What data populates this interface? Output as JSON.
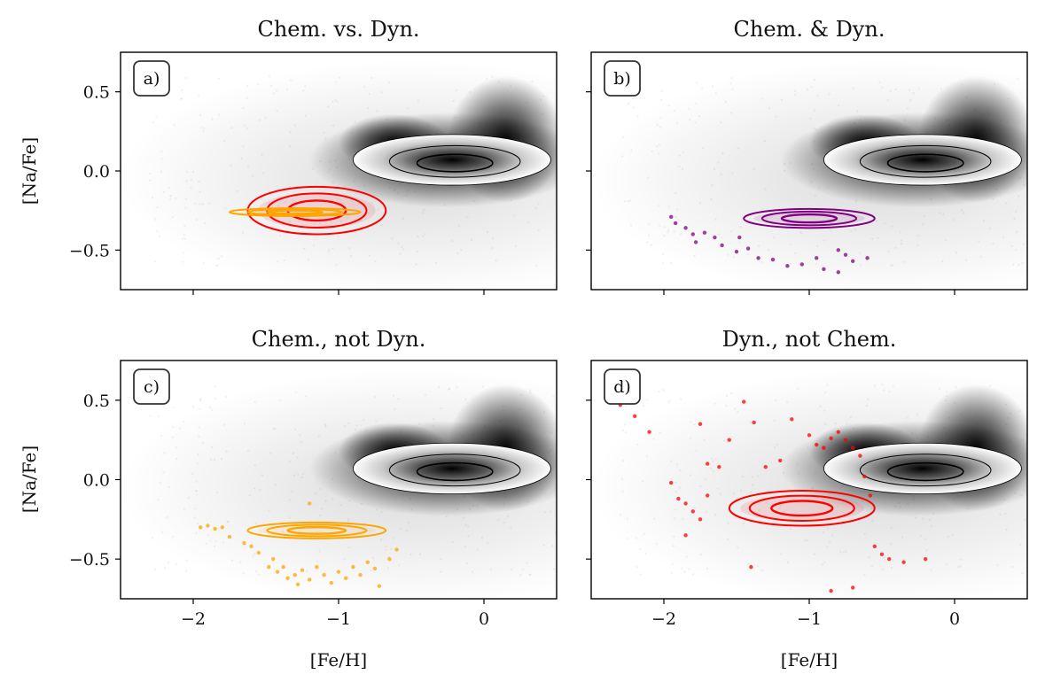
{
  "chart_data": [
    {
      "panel": "a)",
      "type": "scatter",
      "title": "Chem. vs. Dyn.",
      "xlabel": "",
      "ylabel": "[Na/Fe]",
      "xlim": [
        -2.5,
        0.5
      ],
      "ylim": [
        -0.75,
        0.75
      ],
      "xticks": [
        -2,
        -1,
        0
      ],
      "yticks": [
        0.5,
        0.0,
        -0.5
      ],
      "xtick_labels": [
        "",
        "",
        ""
      ],
      "ytick_labels": [
        "0.5",
        "0.0",
        "−0.5"
      ],
      "background_density": "grey field-star density with black contours, peak near [Fe/H]=-0.2, [Na/Fe]=0.05",
      "series": [
        {
          "color": "#ff0000",
          "style": "contour",
          "center": [
            -1.15,
            -0.25
          ],
          "spread": [
            0.95,
            0.3
          ]
        },
        {
          "color": "#ffa500",
          "style": "contour",
          "center": [
            -1.3,
            -0.26
          ],
          "spread": [
            0.9,
            0.05
          ]
        }
      ],
      "points": []
    },
    {
      "panel": "b)",
      "type": "scatter",
      "title": "Chem. & Dyn.",
      "xlabel": "",
      "ylabel": "",
      "xlim": [
        -2.5,
        0.5
      ],
      "ylim": [
        -0.75,
        0.75
      ],
      "xticks": [
        -2,
        -1,
        0
      ],
      "yticks": [
        0.5,
        0.0,
        -0.5
      ],
      "xtick_labels": [
        "",
        "",
        ""
      ],
      "ytick_labels": [
        "",
        "",
        ""
      ],
      "series": [
        {
          "color": "#800080",
          "style": "contour",
          "center": [
            -1.0,
            -0.3
          ],
          "spread": [
            0.9,
            0.12
          ]
        }
      ],
      "points": [
        {
          "color": "#800080",
          "xy": [
            [
              -1.95,
              -0.29
            ],
            [
              -1.92,
              -0.33
            ],
            [
              -1.85,
              -0.36
            ],
            [
              -1.8,
              -0.4
            ],
            [
              -1.72,
              -0.39
            ],
            [
              -1.65,
              -0.42
            ],
            [
              -1.78,
              -0.45
            ],
            [
              -1.6,
              -0.47
            ],
            [
              -1.5,
              -0.51
            ],
            [
              -1.42,
              -0.49
            ],
            [
              -1.35,
              -0.55
            ],
            [
              -1.25,
              -0.56
            ],
            [
              -1.15,
              -0.6
            ],
            [
              -1.05,
              -0.59
            ],
            [
              -0.95,
              -0.55
            ],
            [
              -0.9,
              -0.62
            ],
            [
              -0.8,
              -0.64
            ],
            [
              -0.75,
              -0.53
            ],
            [
              -0.7,
              -0.57
            ],
            [
              -0.6,
              -0.55
            ],
            [
              -0.8,
              -0.5
            ],
            [
              -1.48,
              -0.42
            ]
          ]
        }
      ]
    },
    {
      "panel": "c)",
      "type": "scatter",
      "title": "Chem., not Dyn.",
      "xlabel": "[Fe/H]",
      "ylabel": "[Na/Fe]",
      "xlim": [
        -2.5,
        0.5
      ],
      "ylim": [
        -0.75,
        0.75
      ],
      "xticks": [
        -2,
        -1,
        0
      ],
      "yticks": [
        0.5,
        0.0,
        -0.5
      ],
      "xtick_labels": [
        "−2",
        "−1",
        "0"
      ],
      "ytick_labels": [
        "0.5",
        "0.0",
        "−0.5"
      ],
      "series": [
        {
          "color": "#ffa500",
          "style": "contour",
          "center": [
            -1.15,
            -0.32
          ],
          "spread": [
            0.95,
            0.1
          ]
        }
      ],
      "points": [
        {
          "color": "#ffa500",
          "xy": [
            [
              -1.95,
              -0.3
            ],
            [
              -1.9,
              -0.29
            ],
            [
              -1.85,
              -0.31
            ],
            [
              -1.8,
              -0.3
            ],
            [
              -1.75,
              -0.36
            ],
            [
              -1.65,
              -0.4
            ],
            [
              -1.55,
              -0.46
            ],
            [
              -1.45,
              -0.5
            ],
            [
              -1.42,
              -0.58
            ],
            [
              -1.38,
              -0.55
            ],
            [
              -1.35,
              -0.62
            ],
            [
              -1.3,
              -0.6
            ],
            [
              -1.28,
              -0.66
            ],
            [
              -1.25,
              -0.57
            ],
            [
              -1.2,
              -0.63
            ],
            [
              -1.15,
              -0.55
            ],
            [
              -1.1,
              -0.6
            ],
            [
              -1.05,
              -0.65
            ],
            [
              -1.0,
              -0.58
            ],
            [
              -0.95,
              -0.62
            ],
            [
              -0.9,
              -0.55
            ],
            [
              -0.85,
              -0.6
            ],
            [
              -0.8,
              -0.52
            ],
            [
              -0.75,
              -0.56
            ],
            [
              -0.72,
              -0.67
            ],
            [
              -0.65,
              -0.5
            ],
            [
              -0.6,
              -0.44
            ],
            [
              -1.2,
              -0.15
            ],
            [
              -1.48,
              -0.55
            ],
            [
              -1.6,
              -0.42
            ]
          ]
        }
      ]
    },
    {
      "panel": "d)",
      "type": "scatter",
      "title": "Dyn., not Chem.",
      "xlabel": "[Fe/H]",
      "ylabel": "",
      "xlim": [
        -2.5,
        0.5
      ],
      "ylim": [
        -0.75,
        0.75
      ],
      "xticks": [
        -2,
        -1,
        0
      ],
      "yticks": [
        0.5,
        0.0,
        -0.5
      ],
      "xtick_labels": [
        "−2",
        "−1",
        "0"
      ],
      "ytick_labels": [
        "",
        "",
        ""
      ],
      "series": [
        {
          "color": "#ff0000",
          "style": "contour",
          "center": [
            -1.05,
            -0.18
          ],
          "spread": [
            1.0,
            0.22
          ]
        }
      ],
      "points": [
        {
          "color": "#ff0000",
          "xy": [
            [
              -2.3,
              0.47
            ],
            [
              -2.2,
              0.4
            ],
            [
              -2.1,
              0.3
            ],
            [
              -1.95,
              -0.02
            ],
            [
              -1.9,
              -0.12
            ],
            [
              -1.85,
              -0.15
            ],
            [
              -1.8,
              -0.2
            ],
            [
              -1.75,
              -0.25
            ],
            [
              -1.7,
              -0.1
            ],
            [
              -1.75,
              0.35
            ],
            [
              -1.7,
              0.1
            ],
            [
              -1.62,
              0.08
            ],
            [
              -1.55,
              0.25
            ],
            [
              -1.45,
              0.49
            ],
            [
              -1.38,
              0.36
            ],
            [
              -1.3,
              0.08
            ],
            [
              -1.2,
              0.12
            ],
            [
              -1.12,
              0.38
            ],
            [
              -1.0,
              0.28
            ],
            [
              -0.95,
              0.22
            ],
            [
              -0.9,
              0.2
            ],
            [
              -0.85,
              0.26
            ],
            [
              -0.8,
              0.3
            ],
            [
              -0.75,
              0.25
            ],
            [
              -0.7,
              0.2
            ],
            [
              -0.65,
              0.15
            ],
            [
              -0.62,
              0.02
            ],
            [
              -0.58,
              -0.1
            ],
            [
              -0.55,
              -0.42
            ],
            [
              -0.5,
              -0.47
            ],
            [
              -0.45,
              -0.5
            ],
            [
              -0.35,
              -0.52
            ],
            [
              -0.2,
              -0.5
            ],
            [
              -0.7,
              -0.68
            ],
            [
              -0.85,
              -0.7
            ],
            [
              -1.4,
              -0.55
            ],
            [
              -1.85,
              -0.35
            ]
          ]
        }
      ]
    }
  ]
}
